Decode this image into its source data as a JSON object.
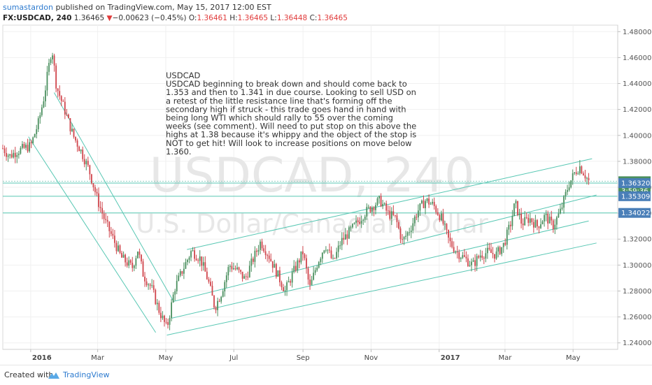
{
  "header": {
    "author": "sumastardon",
    "published": "published on TradingView.com, May 15, 2017 12:00 EST",
    "symbol": "FX:USDCAD, 240",
    "last": "1.36465",
    "change_arrow": "▼",
    "change": "−0.00623 (−0.45%)",
    "o_label": "O:",
    "o_value": "1.36461",
    "h_label": "H:",
    "h_value": "1.36465",
    "l_label": "L:",
    "l_value": "1.36448",
    "c_label": "C:",
    "c_value": "1.36465"
  },
  "watermark": {
    "symbol": "USDCAD, 240",
    "name": "U.S. Dollar/Canadian Dollar"
  },
  "note_lines": [
    "USDCAD",
    "USDCAD beginning to break down and should come back to",
    "1.353 and then to 1.341 in due course. Looking to sell USD on",
    "a retest of the little resistance line that's forming off the",
    "secondary high if struck - this trade goes hand in hand with",
    "being long WTI which should rally to 55 over the coming",
    "weeks (see comment). Will need to put stop on this above the",
    "highs at 1.38 because it's whippy and the object of the stop is",
    "NOT to get hit! Will look to increase positions on move below",
    "1.360."
  ],
  "footer": {
    "created": "Created with",
    "brand": "TradingView"
  },
  "colors": {
    "up": "#4a8f5e",
    "down": "#d0454c",
    "trendline": "#57c7b3",
    "price_badge": "#4a8f5e",
    "level_badge": "#4a7fb8"
  },
  "chart_data": {
    "type": "candlestick",
    "symbol": "FX:USDCAD",
    "timeframe": "240",
    "y_axis": {
      "range": [
        1.235,
        1.485
      ],
      "ticks": [
        "1.48000",
        "1.46000",
        "1.44000",
        "1.42000",
        "1.40000",
        "1.38000",
        "1.36000",
        "1.34000",
        "1.32000",
        "1.30000",
        "1.28000",
        "1.26000",
        "1.24000"
      ]
    },
    "x_axis": {
      "range": [
        "2015-12-07",
        "2017-06-10"
      ],
      "tick_labels": [
        {
          "label": "2016",
          "date": "2016-01-01",
          "bold": true
        },
        {
          "label": "Mar",
          "date": "2016-03-01"
        },
        {
          "label": "May",
          "date": "2016-05-01"
        },
        {
          "label": "Jul",
          "date": "2016-07-01"
        },
        {
          "label": "Sep",
          "date": "2016-09-01"
        },
        {
          "label": "Nov",
          "date": "2016-11-01"
        },
        {
          "label": "2017",
          "date": "2017-01-01",
          "bold": true
        },
        {
          "label": "Mar",
          "date": "2017-03-01"
        },
        {
          "label": "May",
          "date": "2017-05-01"
        }
      ]
    },
    "price_path": [
      {
        "date": "2015-12-07",
        "price": 1.39
      },
      {
        "date": "2015-12-13",
        "price": 1.384
      },
      {
        "date": "2015-12-20",
        "price": 1.388
      },
      {
        "date": "2016-01-01",
        "price": 1.392
      },
      {
        "date": "2016-01-08",
        "price": 1.41
      },
      {
        "date": "2016-01-13",
        "price": 1.43
      },
      {
        "date": "2016-01-17",
        "price": 1.452
      },
      {
        "date": "2016-01-20",
        "price": 1.468
      },
      {
        "date": "2016-01-24",
        "price": 1.438
      },
      {
        "date": "2016-02-01",
        "price": 1.418
      },
      {
        "date": "2016-02-08",
        "price": 1.4
      },
      {
        "date": "2016-02-15",
        "price": 1.388
      },
      {
        "date": "2016-02-22",
        "price": 1.374
      },
      {
        "date": "2016-03-01",
        "price": 1.35
      },
      {
        "date": "2016-03-08",
        "price": 1.333
      },
      {
        "date": "2016-03-15",
        "price": 1.32
      },
      {
        "date": "2016-03-22",
        "price": 1.306
      },
      {
        "date": "2016-04-01",
        "price": 1.298
      },
      {
        "date": "2016-04-06",
        "price": 1.312
      },
      {
        "date": "2016-04-11",
        "price": 1.292
      },
      {
        "date": "2016-04-18",
        "price": 1.283
      },
      {
        "date": "2016-04-25",
        "price": 1.265
      },
      {
        "date": "2016-05-02",
        "price": 1.251
      },
      {
        "date": "2016-05-09",
        "price": 1.282
      },
      {
        "date": "2016-05-16",
        "price": 1.296
      },
      {
        "date": "2016-05-24",
        "price": 1.311
      },
      {
        "date": "2016-06-01",
        "price": 1.305
      },
      {
        "date": "2016-06-08",
        "price": 1.288
      },
      {
        "date": "2016-06-14",
        "price": 1.267
      },
      {
        "date": "2016-06-20",
        "price": 1.279
      },
      {
        "date": "2016-06-27",
        "price": 1.3
      },
      {
        "date": "2016-07-04",
        "price": 1.296
      },
      {
        "date": "2016-07-11",
        "price": 1.289
      },
      {
        "date": "2016-07-18",
        "price": 1.304
      },
      {
        "date": "2016-07-25",
        "price": 1.318
      },
      {
        "date": "2016-08-01",
        "price": 1.308
      },
      {
        "date": "2016-08-09",
        "price": 1.293
      },
      {
        "date": "2016-08-16",
        "price": 1.28
      },
      {
        "date": "2016-08-23",
        "price": 1.294
      },
      {
        "date": "2016-09-01",
        "price": 1.31
      },
      {
        "date": "2016-09-07",
        "price": 1.282
      },
      {
        "date": "2016-09-14",
        "price": 1.302
      },
      {
        "date": "2016-09-21",
        "price": 1.316
      },
      {
        "date": "2016-09-28",
        "price": 1.302
      },
      {
        "date": "2016-10-05",
        "price": 1.318
      },
      {
        "date": "2016-10-12",
        "price": 1.325
      },
      {
        "date": "2016-10-19",
        "price": 1.332
      },
      {
        "date": "2016-10-26",
        "price": 1.34
      },
      {
        "date": "2016-11-03",
        "price": 1.346
      },
      {
        "date": "2016-11-09",
        "price": 1.35
      },
      {
        "date": "2016-11-16",
        "price": 1.34
      },
      {
        "date": "2016-11-23",
        "price": 1.336
      },
      {
        "date": "2016-11-29",
        "price": 1.318
      },
      {
        "date": "2016-12-06",
        "price": 1.328
      },
      {
        "date": "2016-12-13",
        "price": 1.342
      },
      {
        "date": "2016-12-20",
        "price": 1.35
      },
      {
        "date": "2016-12-27",
        "price": 1.346
      },
      {
        "date": "2017-01-03",
        "price": 1.336
      },
      {
        "date": "2017-01-10",
        "price": 1.318
      },
      {
        "date": "2017-01-17",
        "price": 1.31
      },
      {
        "date": "2017-01-24",
        "price": 1.305
      },
      {
        "date": "2017-01-31",
        "price": 1.3
      },
      {
        "date": "2017-02-07",
        "price": 1.308
      },
      {
        "date": "2017-02-14",
        "price": 1.31
      },
      {
        "date": "2017-02-21",
        "price": 1.308
      },
      {
        "date": "2017-02-28",
        "price": 1.316
      },
      {
        "date": "2017-03-06",
        "price": 1.332
      },
      {
        "date": "2017-03-10",
        "price": 1.348
      },
      {
        "date": "2017-03-16",
        "price": 1.332
      },
      {
        "date": "2017-03-23",
        "price": 1.336
      },
      {
        "date": "2017-03-30",
        "price": 1.33
      },
      {
        "date": "2017-04-06",
        "price": 1.338
      },
      {
        "date": "2017-04-13",
        "price": 1.33
      },
      {
        "date": "2017-04-20",
        "price": 1.342
      },
      {
        "date": "2017-04-27",
        "price": 1.362
      },
      {
        "date": "2017-05-03",
        "price": 1.372
      },
      {
        "date": "2017-05-07",
        "price": 1.376
      },
      {
        "date": "2017-05-10",
        "price": 1.372
      },
      {
        "date": "2017-05-15",
        "price": 1.3647
      }
    ],
    "horizontal_levels": [
      {
        "price": 1.36465,
        "label": "1.36465",
        "style": "price"
      },
      {
        "price": 1.3632,
        "label": "1.36320",
        "style": "level"
      },
      {
        "price": 1.35309,
        "label": "1.35309",
        "style": "level"
      },
      {
        "price": 1.34022,
        "label": "1.34022",
        "style": "level"
      }
    ],
    "price_badge_countdown": "3:59:36",
    "trendlines": [
      {
        "from": {
          "date": "2016-01-22",
          "price": 1.433
        },
        "to": {
          "date": "2016-05-08",
          "price": 1.272
        }
      },
      {
        "from": {
          "date": "2015-12-30",
          "price": 1.399
        },
        "to": {
          "date": "2016-04-22",
          "price": 1.248
        }
      },
      {
        "from": {
          "date": "2016-05-20",
          "price": 1.312
        },
        "to": {
          "date": "2017-05-18",
          "price": 1.382
        }
      },
      {
        "from": {
          "date": "2016-05-08",
          "price": 1.272
        },
        "to": {
          "date": "2017-05-22",
          "price": 1.354
        }
      },
      {
        "from": {
          "date": "2016-05-06",
          "price": 1.259
        },
        "to": {
          "date": "2017-05-15",
          "price": 1.334
        }
      },
      {
        "from": {
          "date": "2016-05-02",
          "price": 1.246
        },
        "to": {
          "date": "2017-05-22",
          "price": 1.317
        }
      }
    ]
  }
}
